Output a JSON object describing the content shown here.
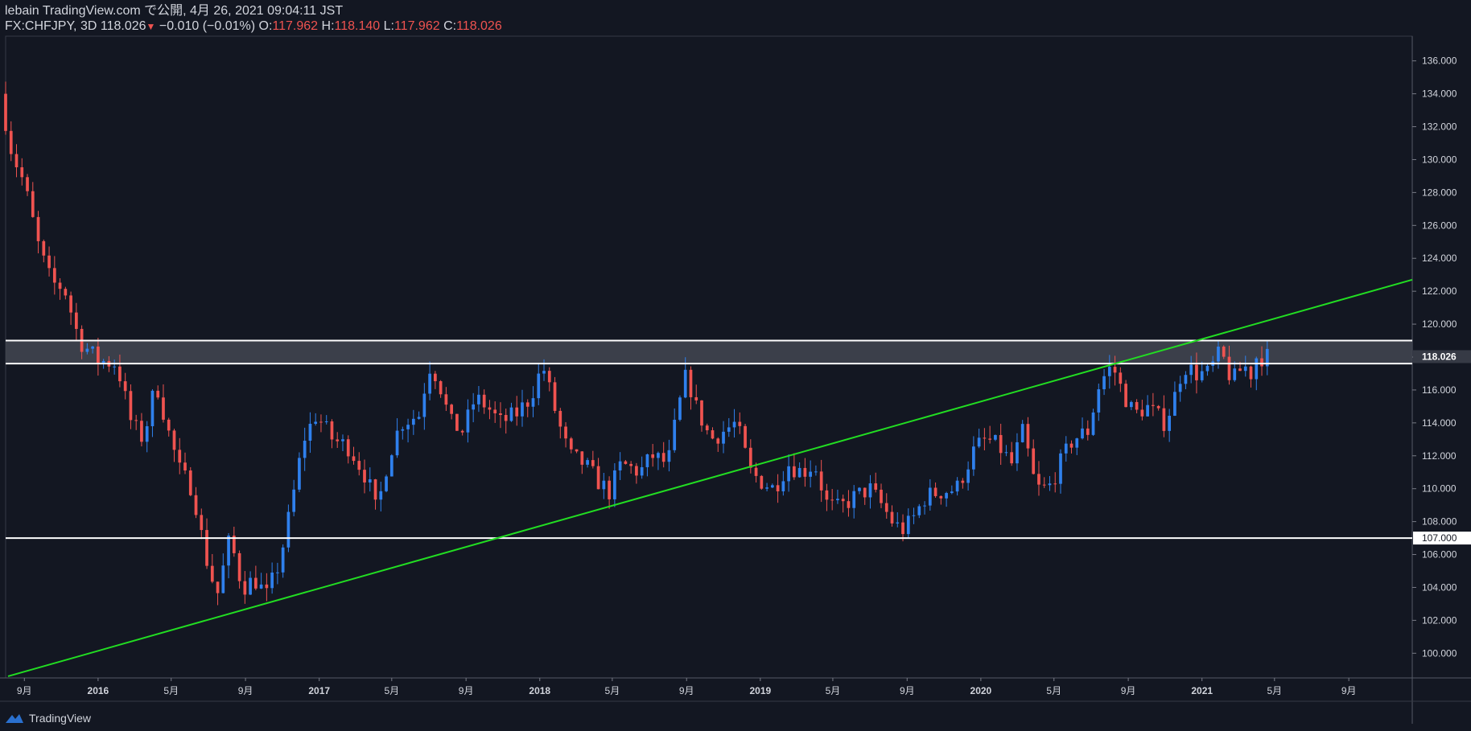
{
  "header": {
    "line1": "lebain TradingView.com で公開, 4月 26, 2021 09:04:11 JST",
    "symbol_label": "FX:CHFJPY, 3D",
    "last": "118.026",
    "change": "−0.010 (−0.01%)",
    "o_label": "O:",
    "o_val": "117.962",
    "h_label": "H:",
    "h_val": "118.140",
    "l_label": "L:",
    "l_val": "117.962",
    "c_label": "C:",
    "c_val": "118.026"
  },
  "footer": {
    "brand": "TradingView"
  },
  "colors": {
    "background": "#131722",
    "up": "#2f80ed",
    "down": "#ef5350",
    "trendline": "#22dd22",
    "level": "#ffffff",
    "zone": "#434651"
  },
  "chart_data": {
    "type": "candlestick",
    "symbol": "FX:CHFJPY",
    "interval": "3D",
    "y_ticks": [
      100,
      102,
      104,
      106,
      108,
      110,
      112,
      114,
      116,
      118,
      120,
      122,
      124,
      126,
      128,
      130,
      132,
      134,
      136
    ],
    "ylim": [
      98.5,
      137.5
    ],
    "x_ticks": [
      {
        "label": "9月",
        "date": "2015-09-01"
      },
      {
        "label": "2016",
        "date": "2016-01-01"
      },
      {
        "label": "5月",
        "date": "2016-05-01"
      },
      {
        "label": "9月",
        "date": "2016-09-01"
      },
      {
        "label": "2017",
        "date": "2017-01-01"
      },
      {
        "label": "5月",
        "date": "2017-05-01"
      },
      {
        "label": "9月",
        "date": "2017-09-01"
      },
      {
        "label": "2018",
        "date": "2018-01-01"
      },
      {
        "label": "5月",
        "date": "2018-05-01"
      },
      {
        "label": "9月",
        "date": "2018-09-01"
      },
      {
        "label": "2019",
        "date": "2019-01-01"
      },
      {
        "label": "5月",
        "date": "2019-05-01"
      },
      {
        "label": "9月",
        "date": "2019-09-01"
      },
      {
        "label": "2020",
        "date": "2020-01-01"
      },
      {
        "label": "5月",
        "date": "2020-05-01"
      },
      {
        "label": "9月",
        "date": "2020-09-01"
      },
      {
        "label": "2021",
        "date": "2021-01-01"
      },
      {
        "label": "5月",
        "date": "2021-05-01"
      },
      {
        "label": "9月",
        "date": "2021-09-01"
      }
    ],
    "xlim": [
      "2015-08-01",
      "2021-12-15"
    ],
    "price_path": [
      [
        "2015-08-01",
        134.0
      ],
      [
        "2015-08-20",
        130.5
      ],
      [
        "2015-09-10",
        128.5
      ],
      [
        "2015-10-05",
        124.5
      ],
      [
        "2015-10-25",
        122.5
      ],
      [
        "2015-11-15",
        122.2
      ],
      [
        "2015-12-10",
        119.0
      ],
      [
        "2016-01-10",
        117.8
      ],
      [
        "2016-02-10",
        117.6
      ],
      [
        "2016-03-05",
        114.0
      ],
      [
        "2016-03-25",
        113.0
      ],
      [
        "2016-04-15",
        116.5
      ],
      [
        "2016-05-05",
        113.5
      ],
      [
        "2016-05-25",
        111.0
      ],
      [
        "2016-06-15",
        110.0
      ],
      [
        "2016-07-05",
        106.0
      ],
      [
        "2016-07-25",
        103.5
      ],
      [
        "2016-08-15",
        107.0
      ],
      [
        "2016-09-05",
        104.0
      ],
      [
        "2016-09-25",
        104.5
      ],
      [
        "2016-10-15",
        103.5
      ],
      [
        "2016-11-05",
        105.5
      ],
      [
        "2016-11-25",
        109.0
      ],
      [
        "2016-12-15",
        113.0
      ],
      [
        "2017-01-05",
        114.5
      ],
      [
        "2017-02-01",
        113.0
      ],
      [
        "2017-03-01",
        112.5
      ],
      [
        "2017-04-01",
        110.5
      ],
      [
        "2017-04-15",
        108.5
      ],
      [
        "2017-05-05",
        112.0
      ],
      [
        "2017-05-25",
        114.0
      ],
      [
        "2017-06-25",
        114.5
      ],
      [
        "2017-07-10",
        117.5
      ],
      [
        "2017-07-25",
        116.8
      ],
      [
        "2017-08-15",
        114.0
      ],
      [
        "2017-09-05",
        113.5
      ],
      [
        "2017-09-25",
        115.5
      ],
      [
        "2017-10-15",
        115.0
      ],
      [
        "2017-11-05",
        114.0
      ],
      [
        "2017-12-01",
        114.5
      ],
      [
        "2017-12-25",
        115.5
      ],
      [
        "2018-01-15",
        117.5
      ],
      [
        "2018-02-10",
        114.0
      ],
      [
        "2018-02-28",
        112.0
      ],
      [
        "2018-03-25",
        111.5
      ],
      [
        "2018-04-15",
        110.5
      ],
      [
        "2018-05-05",
        109.8
      ],
      [
        "2018-05-25",
        111.5
      ],
      [
        "2018-06-25",
        111.0
      ],
      [
        "2018-07-15",
        112.0
      ],
      [
        "2018-08-10",
        111.5
      ],
      [
        "2018-08-25",
        114.5
      ],
      [
        "2018-09-10",
        117.0
      ],
      [
        "2018-09-25",
        115.0
      ],
      [
        "2018-10-20",
        113.0
      ],
      [
        "2018-11-10",
        113.5
      ],
      [
        "2018-12-01",
        114.0
      ],
      [
        "2018-12-25",
        111.0
      ],
      [
        "2019-01-10",
        110.5
      ],
      [
        "2019-02-01",
        110.0
      ],
      [
        "2019-02-25",
        111.5
      ],
      [
        "2019-03-20",
        111.0
      ],
      [
        "2019-04-10",
        111.5
      ],
      [
        "2019-05-01",
        109.0
      ],
      [
        "2019-05-20",
        108.8
      ],
      [
        "2019-06-15",
        109.5
      ],
      [
        "2019-07-10",
        110.0
      ],
      [
        "2019-07-30",
        109.0
      ],
      [
        "2019-08-20",
        107.8
      ],
      [
        "2019-09-05",
        107.5
      ],
      [
        "2019-09-20",
        108.2
      ],
      [
        "2019-10-10",
        109.5
      ],
      [
        "2019-11-01",
        109.8
      ],
      [
        "2019-12-01",
        110.0
      ],
      [
        "2020-01-01",
        112.5
      ],
      [
        "2020-01-20",
        113.0
      ],
      [
        "2020-02-10",
        112.5
      ],
      [
        "2020-03-01",
        111.5
      ],
      [
        "2020-03-20",
        113.5
      ],
      [
        "2020-04-10",
        110.0
      ],
      [
        "2020-05-01",
        110.0
      ],
      [
        "2020-05-20",
        111.5
      ],
      [
        "2020-06-10",
        113.0
      ],
      [
        "2020-07-05",
        113.5
      ],
      [
        "2020-07-25",
        116.5
      ],
      [
        "2020-08-15",
        117.5
      ],
      [
        "2020-08-30",
        116.0
      ],
      [
        "2020-09-20",
        114.5
      ],
      [
        "2020-10-10",
        115.0
      ],
      [
        "2020-10-25",
        114.5
      ],
      [
        "2020-11-10",
        114.0
      ],
      [
        "2020-11-25",
        115.5
      ],
      [
        "2020-12-10",
        117.5
      ],
      [
        "2021-01-01",
        117.0
      ],
      [
        "2021-01-20",
        117.0
      ],
      [
        "2021-02-10",
        118.3
      ],
      [
        "2021-03-01",
        116.5
      ],
      [
        "2021-03-20",
        117.5
      ],
      [
        "2021-04-01",
        117.0
      ],
      [
        "2021-04-10",
        118.0
      ],
      [
        "2021-04-26",
        118.026
      ]
    ],
    "candle_interval_days": 9,
    "last_price": 118.026,
    "price_labels": [
      {
        "value": 118.026,
        "text": "118.026",
        "style": "last"
      },
      {
        "value": 107.0,
        "text": "107.000",
        "style": "level"
      }
    ],
    "levels": [
      119.0,
      117.6,
      107.0
    ],
    "zone": [
      117.6,
      119.0
    ],
    "trendline": {
      "from": [
        "2015-08-05",
        98.6
      ],
      "to": [
        "2021-12-15",
        122.7
      ]
    }
  }
}
